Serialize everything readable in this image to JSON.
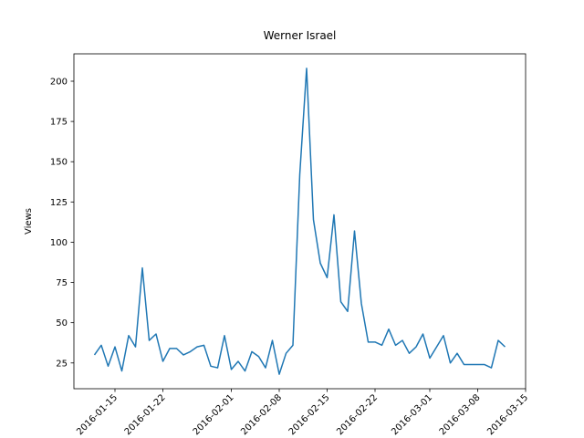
{
  "chart_data": {
    "type": "line",
    "title": "Werner Israel",
    "ylabel": "Views",
    "color": "#1f77b4",
    "x": [
      "2016-01-12",
      "2016-01-13",
      "2016-01-14",
      "2016-01-15",
      "2016-01-16",
      "2016-01-17",
      "2016-01-18",
      "2016-01-19",
      "2016-01-20",
      "2016-01-21",
      "2016-01-22",
      "2016-01-23",
      "2016-01-24",
      "2016-01-25",
      "2016-01-26",
      "2016-01-27",
      "2016-01-28",
      "2016-01-29",
      "2016-01-30",
      "2016-01-31",
      "2016-02-01",
      "2016-02-02",
      "2016-02-03",
      "2016-02-04",
      "2016-02-05",
      "2016-02-06",
      "2016-02-07",
      "2016-02-08",
      "2016-02-09",
      "2016-02-10",
      "2016-02-11",
      "2016-02-12",
      "2016-02-13",
      "2016-02-14",
      "2016-02-15",
      "2016-02-16",
      "2016-02-17",
      "2016-02-18",
      "2016-02-19",
      "2016-02-20",
      "2016-02-21",
      "2016-02-22",
      "2016-02-23",
      "2016-02-24",
      "2016-02-25",
      "2016-02-26",
      "2016-02-27",
      "2016-02-28",
      "2016-02-29",
      "2016-03-01",
      "2016-03-02",
      "2016-03-03",
      "2016-03-04",
      "2016-03-05",
      "2016-03-06",
      "2016-03-07",
      "2016-03-08",
      "2016-03-09",
      "2016-03-10",
      "2016-03-11",
      "2016-03-12"
    ],
    "values": [
      30,
      36,
      23,
      35,
      20,
      42,
      35,
      84,
      39,
      43,
      26,
      34,
      34,
      30,
      32,
      35,
      36,
      23,
      22,
      42,
      21,
      26,
      20,
      32,
      29,
      22,
      39,
      18,
      31,
      36,
      142,
      208,
      114,
      87,
      78,
      117,
      63,
      57,
      107,
      62,
      38,
      38,
      36,
      46,
      36,
      39,
      31,
      35,
      43,
      28,
      35,
      42,
      25,
      31,
      24,
      24,
      24,
      24,
      22,
      39,
      35
    ],
    "xlim": [
      "2016-01-09",
      "2016-03-15"
    ],
    "xticks": [
      "2016-01-15",
      "2016-01-22",
      "2016-02-01",
      "2016-02-08",
      "2016-02-15",
      "2016-02-22",
      "2016-03-01",
      "2016-03-08",
      "2016-03-15"
    ],
    "ylim": [
      9,
      217
    ],
    "yticks": [
      25,
      50,
      75,
      100,
      125,
      150,
      175,
      200
    ],
    "grid": false
  }
}
